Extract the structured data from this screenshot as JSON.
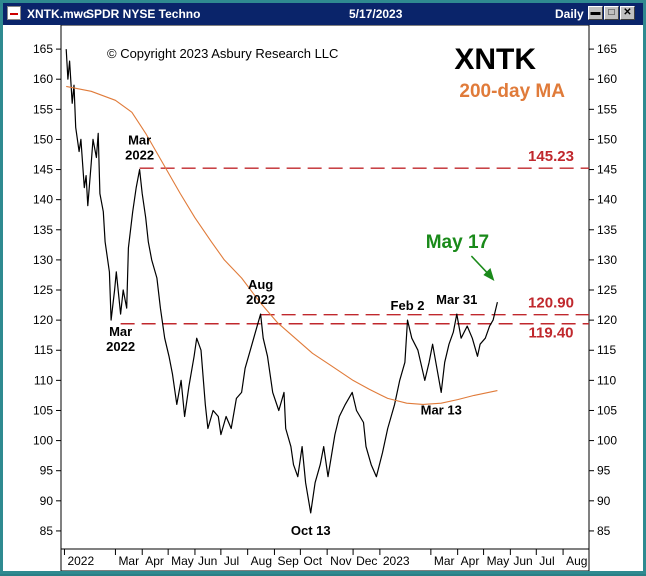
{
  "window": {
    "file": "XNTK.mwc",
    "instrument": "SPDR NYSE Techno",
    "date": "5/17/2023",
    "period": "Daily",
    "buttons": [
      "minimize",
      "maximize",
      "close"
    ]
  },
  "colors": {
    "price": "#000000",
    "ma": "#e07b3a",
    "level": "#c0282d",
    "annotation_green": "#1a8a1a",
    "titlebar": "#0a246a"
  },
  "chart_data": {
    "type": "line",
    "title": "XNTK",
    "subtitle": "200-day MA",
    "copyright": "© Copyright 2023 Asbury Research LLC",
    "xlabel": "",
    "ylabel": "",
    "ylim": [
      82,
      169
    ],
    "xlim": [
      "2021-12-28",
      "2023-08-31"
    ],
    "yticks": [
      85,
      90,
      95,
      100,
      105,
      110,
      115,
      120,
      125,
      130,
      135,
      140,
      145,
      150,
      155,
      160,
      165
    ],
    "xticks": [
      {
        "label": "2022",
        "date": "2022-01-01"
      },
      {
        "label": "Mar",
        "date": "2022-03-01"
      },
      {
        "label": "Apr",
        "date": "2022-04-01"
      },
      {
        "label": "May",
        "date": "2022-05-01"
      },
      {
        "label": "Jun",
        "date": "2022-06-01"
      },
      {
        "label": "Jul",
        "date": "2022-07-01"
      },
      {
        "label": "Aug",
        "date": "2022-08-01"
      },
      {
        "label": "Sep",
        "date": "2022-09-01"
      },
      {
        "label": "Oct",
        "date": "2022-10-01"
      },
      {
        "label": "Nov",
        "date": "2022-11-01"
      },
      {
        "label": "Dec",
        "date": "2022-12-01"
      },
      {
        "label": "2023",
        "date": "2023-01-01"
      },
      {
        "label": "Mar",
        "date": "2023-03-01"
      },
      {
        "label": "Apr",
        "date": "2023-04-01"
      },
      {
        "label": "May",
        "date": "2023-05-01"
      },
      {
        "label": "Jun",
        "date": "2023-06-01"
      },
      {
        "label": "Jul",
        "date": "2023-07-01"
      },
      {
        "label": "Aug",
        "date": "2023-08-01"
      }
    ],
    "grid": false,
    "series": [
      {
        "name": "XNTK",
        "color": "#000000",
        "points": [
          [
            "2022-01-03",
            165
          ],
          [
            "2022-01-05",
            160
          ],
          [
            "2022-01-07",
            163
          ],
          [
            "2022-01-10",
            156
          ],
          [
            "2022-01-12",
            159
          ],
          [
            "2022-01-14",
            152
          ],
          [
            "2022-01-18",
            148
          ],
          [
            "2022-01-20",
            150
          ],
          [
            "2022-01-24",
            142
          ],
          [
            "2022-01-26",
            144
          ],
          [
            "2022-01-28",
            139
          ],
          [
            "2022-02-01",
            146
          ],
          [
            "2022-02-03",
            150
          ],
          [
            "2022-02-07",
            147
          ],
          [
            "2022-02-09",
            151
          ],
          [
            "2022-02-11",
            141
          ],
          [
            "2022-02-15",
            138
          ],
          [
            "2022-02-17",
            133
          ],
          [
            "2022-02-22",
            128
          ],
          [
            "2022-02-24",
            120
          ],
          [
            "2022-02-28",
            125
          ],
          [
            "2022-03-02",
            128
          ],
          [
            "2022-03-07",
            121
          ],
          [
            "2022-03-10",
            125
          ],
          [
            "2022-03-14",
            122
          ],
          [
            "2022-03-16",
            132
          ],
          [
            "2022-03-21",
            138
          ],
          [
            "2022-03-25",
            142
          ],
          [
            "2022-03-29",
            145
          ],
          [
            "2022-04-01",
            141
          ],
          [
            "2022-04-05",
            137
          ],
          [
            "2022-04-08",
            133
          ],
          [
            "2022-04-12",
            130
          ],
          [
            "2022-04-18",
            127
          ],
          [
            "2022-04-22",
            122
          ],
          [
            "2022-04-27",
            117
          ],
          [
            "2022-05-02",
            114
          ],
          [
            "2022-05-06",
            111
          ],
          [
            "2022-05-11",
            106
          ],
          [
            "2022-05-16",
            110
          ],
          [
            "2022-05-20",
            104
          ],
          [
            "2022-05-25",
            109
          ],
          [
            "2022-05-31",
            114
          ],
          [
            "2022-06-03",
            117
          ],
          [
            "2022-06-08",
            115
          ],
          [
            "2022-06-13",
            106
          ],
          [
            "2022-06-16",
            102
          ],
          [
            "2022-06-22",
            105
          ],
          [
            "2022-06-28",
            104
          ],
          [
            "2022-07-01",
            101
          ],
          [
            "2022-07-07",
            104
          ],
          [
            "2022-07-13",
            102
          ],
          [
            "2022-07-19",
            107
          ],
          [
            "2022-07-25",
            108
          ],
          [
            "2022-07-29",
            112
          ],
          [
            "2022-08-04",
            115
          ],
          [
            "2022-08-10",
            118
          ],
          [
            "2022-08-16",
            121
          ],
          [
            "2022-08-19",
            117
          ],
          [
            "2022-08-24",
            114
          ],
          [
            "2022-08-30",
            108
          ],
          [
            "2022-09-06",
            105
          ],
          [
            "2022-09-12",
            108
          ],
          [
            "2022-09-14",
            102
          ],
          [
            "2022-09-20",
            99
          ],
          [
            "2022-09-23",
            96
          ],
          [
            "2022-09-28",
            94
          ],
          [
            "2022-10-03",
            99
          ],
          [
            "2022-10-07",
            93
          ],
          [
            "2022-10-13",
            88
          ],
          [
            "2022-10-18",
            93
          ],
          [
            "2022-10-24",
            96
          ],
          [
            "2022-10-28",
            99
          ],
          [
            "2022-11-02",
            94
          ],
          [
            "2022-11-10",
            101
          ],
          [
            "2022-11-15",
            104
          ],
          [
            "2022-11-22",
            106
          ],
          [
            "2022-11-30",
            108
          ],
          [
            "2022-12-05",
            105
          ],
          [
            "2022-12-13",
            103
          ],
          [
            "2022-12-16",
            99
          ],
          [
            "2022-12-22",
            96
          ],
          [
            "2022-12-28",
            94
          ],
          [
            "2023-01-04",
            98
          ],
          [
            "2023-01-10",
            102
          ],
          [
            "2023-01-18",
            106
          ],
          [
            "2023-01-24",
            110
          ],
          [
            "2023-01-30",
            113
          ],
          [
            "2023-02-02",
            120
          ],
          [
            "2023-02-07",
            117
          ],
          [
            "2023-02-14",
            115
          ],
          [
            "2023-02-22",
            110
          ],
          [
            "2023-02-27",
            113
          ],
          [
            "2023-03-03",
            116
          ],
          [
            "2023-03-08",
            112
          ],
          [
            "2023-03-13",
            108
          ],
          [
            "2023-03-17",
            113
          ],
          [
            "2023-03-22",
            116
          ],
          [
            "2023-03-27",
            118
          ],
          [
            "2023-03-31",
            121
          ],
          [
            "2023-04-05",
            117
          ],
          [
            "2023-04-12",
            119
          ],
          [
            "2023-04-18",
            117
          ],
          [
            "2023-04-24",
            114
          ],
          [
            "2023-04-27",
            116
          ],
          [
            "2023-05-03",
            117
          ],
          [
            "2023-05-08",
            119
          ],
          [
            "2023-05-12",
            120
          ],
          [
            "2023-05-17",
            123
          ]
        ]
      },
      {
        "name": "200-day MA",
        "color": "#e07b3a",
        "points": [
          [
            "2022-01-03",
            158.8
          ],
          [
            "2022-02-01",
            158.0
          ],
          [
            "2022-03-01",
            156.5
          ],
          [
            "2022-03-20",
            154.5
          ],
          [
            "2022-04-05",
            151.0
          ],
          [
            "2022-04-25",
            146.0
          ],
          [
            "2022-05-15",
            141.0
          ],
          [
            "2022-06-01",
            137.0
          ],
          [
            "2022-06-20",
            133.0
          ],
          [
            "2022-07-05",
            130.0
          ],
          [
            "2022-07-25",
            127.0
          ],
          [
            "2022-08-15",
            123.0
          ],
          [
            "2022-09-05",
            119.5
          ],
          [
            "2022-09-25",
            117.0
          ],
          [
            "2022-10-15",
            114.5
          ],
          [
            "2022-11-05",
            112.5
          ],
          [
            "2022-12-01",
            110.0
          ],
          [
            "2022-12-20",
            108.5
          ],
          [
            "2023-01-10",
            107.0
          ],
          [
            "2023-02-01",
            106.2
          ],
          [
            "2023-02-20",
            106.0
          ],
          [
            "2023-03-13",
            106.2
          ],
          [
            "2023-04-01",
            106.8
          ],
          [
            "2023-04-20",
            107.5
          ],
          [
            "2023-05-17",
            108.3
          ]
        ]
      }
    ],
    "levels": [
      {
        "value": 145.23,
        "label": "145.23",
        "from": "2022-03-29"
      },
      {
        "value": 120.9,
        "label": "120.90",
        "from": "2022-08-16"
      },
      {
        "value": 119.4,
        "label": "119.40",
        "from": "2022-03-07"
      }
    ],
    "annotations": [
      {
        "text": [
          "Mar",
          "2022"
        ],
        "date": "2022-03-29",
        "value": 145,
        "position": "above"
      },
      {
        "text": [
          "Mar",
          "2022"
        ],
        "date": "2022-03-07",
        "value": 121,
        "position": "below"
      },
      {
        "text": [
          "Aug",
          "2022"
        ],
        "date": "2022-08-16",
        "value": 121,
        "position": "above"
      },
      {
        "text": [
          "Oct 13"
        ],
        "date": "2022-10-13",
        "value": 88,
        "position": "below"
      },
      {
        "text": [
          "Feb 2"
        ],
        "date": "2023-02-02",
        "value": 120,
        "position": "above"
      },
      {
        "text": [
          "Mar 31"
        ],
        "date": "2023-03-31",
        "value": 121,
        "position": "above"
      },
      {
        "text": [
          "Mar 13"
        ],
        "date": "2023-03-13",
        "value": 108,
        "position": "below"
      }
    ],
    "callout": {
      "text": "May 17",
      "date": "2023-05-17",
      "value": 123,
      "color": "#1a8a1a"
    }
  }
}
